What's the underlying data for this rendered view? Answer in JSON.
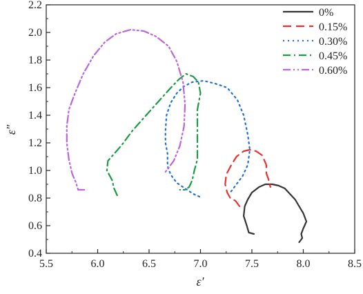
{
  "chart_data": {
    "type": "line",
    "title": "",
    "xlabel": "ε′",
    "ylabel": "ε″",
    "xlim": [
      5.5,
      8.5
    ],
    "ylim": [
      0.4,
      2.2
    ],
    "xticks": [
      "5.5",
      "6.0",
      "6.5",
      "7.0",
      "7.5",
      "8.0",
      "8.5"
    ],
    "yticks": [
      "0.4",
      "0.6",
      "0.8",
      "1.0",
      "1.2",
      "1.4",
      "1.6",
      "1.8",
      "2.0",
      "2.2"
    ],
    "grid": false,
    "legend_position": "top-right",
    "series": [
      {
        "name": "0%",
        "color": "#333333",
        "dash": "solid",
        "points": [
          [
            7.52,
            0.54
          ],
          [
            7.47,
            0.55
          ],
          [
            7.45,
            0.6
          ],
          [
            7.42,
            0.67
          ],
          [
            7.43,
            0.74
          ],
          [
            7.46,
            0.79
          ],
          [
            7.5,
            0.84
          ],
          [
            7.57,
            0.88
          ],
          [
            7.63,
            0.9
          ],
          [
            7.7,
            0.9
          ],
          [
            7.76,
            0.89
          ],
          [
            7.82,
            0.87
          ],
          [
            7.87,
            0.83
          ],
          [
            7.92,
            0.79
          ],
          [
            7.96,
            0.74
          ],
          [
            8.0,
            0.69
          ],
          [
            8.03,
            0.63
          ],
          [
            8.0,
            0.58
          ],
          [
            7.98,
            0.54
          ],
          [
            7.99,
            0.51
          ],
          [
            7.96,
            0.48
          ]
        ]
      },
      {
        "name": "0.15%",
        "color": "#e8312f",
        "dash": "long-dash",
        "points": [
          [
            7.38,
            0.74
          ],
          [
            7.34,
            0.78
          ],
          [
            7.29,
            0.8
          ],
          [
            7.26,
            0.84
          ],
          [
            7.24,
            0.9
          ],
          [
            7.25,
            0.97
          ],
          [
            7.3,
            1.04
          ],
          [
            7.35,
            1.1
          ],
          [
            7.42,
            1.14
          ],
          [
            7.48,
            1.15
          ],
          [
            7.54,
            1.14
          ],
          [
            7.6,
            1.11
          ],
          [
            7.64,
            1.04
          ],
          [
            7.64,
            0.98
          ],
          [
            7.66,
            0.94
          ],
          [
            7.68,
            0.88
          ]
        ]
      },
      {
        "name": "0.30%",
        "color": "#1f6fd1",
        "dash": "dot",
        "points": [
          [
            6.99,
            0.81
          ],
          [
            6.93,
            0.83
          ],
          [
            6.85,
            0.87
          ],
          [
            6.77,
            0.91
          ],
          [
            6.71,
            0.97
          ],
          [
            6.68,
            1.03
          ],
          [
            6.68,
            1.12
          ],
          [
            6.66,
            1.2
          ],
          [
            6.66,
            1.29
          ],
          [
            6.67,
            1.4
          ],
          [
            6.71,
            1.49
          ],
          [
            6.77,
            1.56
          ],
          [
            6.84,
            1.61
          ],
          [
            6.92,
            1.64
          ],
          [
            7.03,
            1.65
          ],
          [
            7.14,
            1.63
          ],
          [
            7.26,
            1.6
          ],
          [
            7.36,
            1.51
          ],
          [
            7.42,
            1.4
          ],
          [
            7.46,
            1.26
          ],
          [
            7.48,
            1.15
          ],
          [
            7.46,
            1.04
          ],
          [
            7.41,
            0.96
          ],
          [
            7.35,
            0.9
          ],
          [
            7.29,
            0.84
          ]
        ]
      },
      {
        "name": "0.45%",
        "color": "#1a9a43",
        "dash": "dash-dot",
        "points": [
          [
            6.19,
            0.82
          ],
          [
            6.16,
            0.87
          ],
          [
            6.14,
            0.93
          ],
          [
            6.09,
            1.0
          ],
          [
            6.1,
            1.07
          ],
          [
            6.16,
            1.12
          ],
          [
            6.23,
            1.18
          ],
          [
            6.34,
            1.29
          ],
          [
            6.46,
            1.39
          ],
          [
            6.58,
            1.49
          ],
          [
            6.7,
            1.59
          ],
          [
            6.79,
            1.66
          ],
          [
            6.86,
            1.7
          ],
          [
            6.93,
            1.68
          ],
          [
            6.98,
            1.64
          ],
          [
            7.0,
            1.56
          ],
          [
            6.97,
            1.44
          ],
          [
            6.97,
            1.33
          ],
          [
            6.97,
            1.2
          ],
          [
            6.97,
            1.08
          ],
          [
            6.94,
            1.0
          ],
          [
            6.92,
            0.93
          ],
          [
            6.89,
            0.88
          ],
          [
            6.85,
            0.86
          ],
          [
            6.8,
            0.86
          ]
        ]
      },
      {
        "name": "0.60%",
        "color": "#b866d9",
        "dash": "dash-dot-dot",
        "points": [
          [
            5.87,
            0.86
          ],
          [
            5.81,
            0.86
          ],
          [
            5.79,
            0.91
          ],
          [
            5.75,
            0.98
          ],
          [
            5.72,
            1.08
          ],
          [
            5.7,
            1.2
          ],
          [
            5.7,
            1.32
          ],
          [
            5.72,
            1.44
          ],
          [
            5.78,
            1.56
          ],
          [
            5.86,
            1.7
          ],
          [
            5.96,
            1.83
          ],
          [
            6.07,
            1.93
          ],
          [
            6.18,
            1.99
          ],
          [
            6.32,
            2.02
          ],
          [
            6.45,
            2.01
          ],
          [
            6.57,
            1.97
          ],
          [
            6.69,
            1.9
          ],
          [
            6.77,
            1.79
          ],
          [
            6.83,
            1.64
          ],
          [
            6.85,
            1.48
          ],
          [
            6.84,
            1.32
          ],
          [
            6.8,
            1.18
          ],
          [
            6.74,
            1.07
          ],
          [
            6.66,
            0.99
          ]
        ]
      }
    ]
  }
}
